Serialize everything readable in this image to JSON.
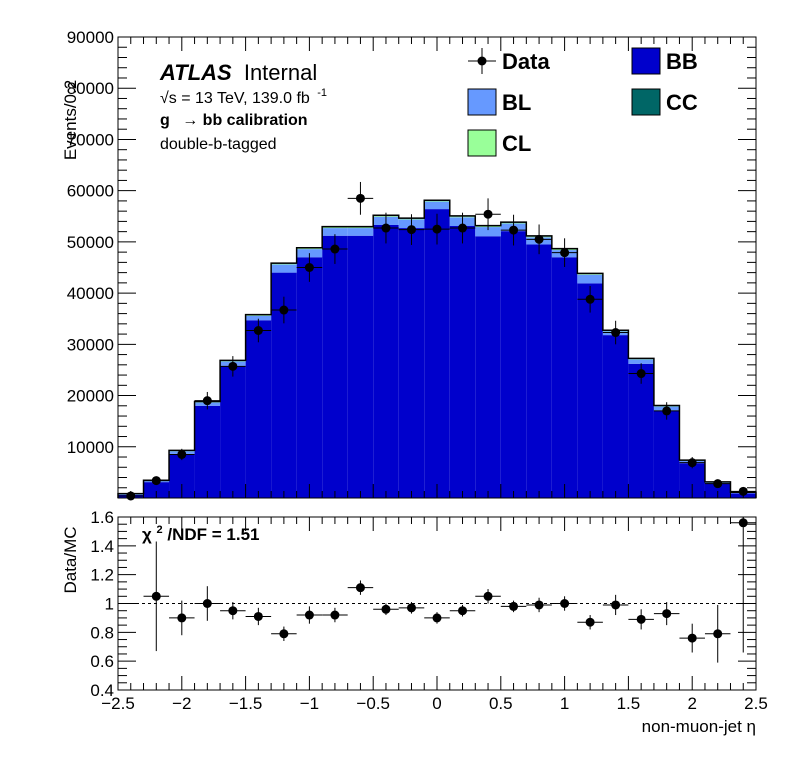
{
  "chart_data": [
    {
      "type": "bar",
      "stacked": true,
      "ylabel": "Events/0.2",
      "ylim": [
        0,
        90000
      ],
      "xlim": [
        -2.5,
        2.5
      ],
      "yticks": [
        10000,
        20000,
        30000,
        40000,
        50000,
        60000,
        70000,
        80000,
        90000
      ],
      "ytick_labels": [
        "10000",
        "20000",
        "30000",
        "40000",
        "50000",
        "60000",
        "70000",
        "80000",
        "90000"
      ],
      "annotations": {
        "atlas": "ATLAS",
        "internal": "Internal",
        "sqrt_s": "√s = 13 TeV, 139.0 fb",
        "lumi_exp": "-1",
        "process_g": "g",
        "process_rest": "→ bb calibration",
        "selection": "double-b-tagged"
      },
      "legend": {
        "placement": "top-right",
        "entries": [
          {
            "label": "Data",
            "color": "#000000",
            "marker": "point"
          },
          {
            "label": "BB",
            "color": "#0000cc"
          },
          {
            "label": "BL",
            "color": "#6699ff"
          },
          {
            "label": "CC",
            "color": "#006666"
          },
          {
            "label": "CL",
            "color": "#99ff99"
          }
        ]
      },
      "bin_edges": [
        -2.5,
        -2.3,
        -2.1,
        -1.9,
        -1.7,
        -1.5,
        -1.3,
        -1.1,
        -0.9,
        -0.7,
        -0.5,
        -0.3,
        -0.1,
        0.1,
        0.3,
        0.5,
        0.7,
        0.9,
        1.1,
        1.3,
        1.5,
        1.7,
        1.9,
        2.1,
        2.3,
        2.5
      ],
      "series": [
        {
          "name": "BB",
          "color": "#0000cc",
          "values": [
            600,
            3100,
            8600,
            18000,
            25800,
            34700,
            44000,
            47000,
            51200,
            51200,
            53300,
            52700,
            56400,
            53100,
            51100,
            52100,
            49500,
            47000,
            41900,
            31800,
            26200,
            17100,
            6800,
            2900,
            900
          ]
        },
        {
          "name": "BL",
          "color": "#6699ff",
          "values": [
            200,
            300,
            600,
            700,
            900,
            900,
            1600,
            1600,
            1500,
            1500,
            1600,
            1700,
            1500,
            1700,
            1800,
            1500,
            1400,
            1400,
            1700,
            800,
            900,
            800,
            500,
            200,
            200
          ]
        },
        {
          "name": "CL",
          "color": "#99ff99",
          "values": [
            20,
            30,
            40,
            60,
            70,
            80,
            110,
            100,
            110,
            110,
            120,
            100,
            90,
            120,
            110,
            110,
            120,
            120,
            110,
            60,
            70,
            70,
            40,
            20,
            10
          ]
        },
        {
          "name": "CC",
          "color": "#006666",
          "values": [
            30,
            40,
            60,
            90,
            110,
            120,
            150,
            150,
            160,
            160,
            170,
            150,
            150,
            170,
            160,
            150,
            160,
            160,
            150,
            90,
            100,
            100,
            60,
            30,
            20
          ]
        }
      ],
      "data": {
        "name": "Data",
        "x": [
          -2.4,
          -2.2,
          -2.0,
          -1.8,
          -1.6,
          -1.4,
          -1.2,
          -1.0,
          -0.8,
          -0.6,
          -0.4,
          -0.2,
          0.0,
          0.2,
          0.4,
          0.6,
          0.8,
          1.0,
          1.2,
          1.4,
          1.6,
          1.8,
          2.0,
          2.2,
          2.4
        ],
        "y": [
          400,
          3400,
          8500,
          19000,
          25700,
          32700,
          36700,
          45000,
          48600,
          58500,
          52700,
          52400,
          52500,
          52700,
          55400,
          52300,
          50500,
          47900,
          38800,
          32300,
          24300,
          17000,
          6900,
          2800,
          1300
        ],
        "yerr": [
          300,
          700,
          1100,
          1700,
          2000,
          2300,
          2600,
          2800,
          2900,
          3200,
          3000,
          3000,
          3000,
          3000,
          3100,
          3000,
          2900,
          2800,
          2600,
          2300,
          2000,
          1700,
          1100,
          700,
          450
        ]
      }
    },
    {
      "type": "scatter",
      "xlabel": "non-muon-jet η",
      "ylabel": "Data/MC",
      "ylim": [
        0.4,
        1.6
      ],
      "xlim": [
        -2.5,
        2.5
      ],
      "yticks": [
        0.4,
        0.6,
        0.8,
        1.0,
        1.2,
        1.4,
        1.6
      ],
      "ytick_labels": [
        "0.4",
        "0.6",
        "0.8",
        "1",
        "1.2",
        "1.4",
        "1.6"
      ],
      "xticks": [
        -2.5,
        -2.0,
        -1.5,
        -1.0,
        -0.5,
        0.0,
        0.5,
        1.0,
        1.5,
        2.0,
        2.5
      ],
      "xtick_labels": [
        "−2.5",
        "−2",
        "−1.5",
        "−1",
        "−0.5",
        "0",
        "0.5",
        "1",
        "1.5",
        "2",
        "2.5"
      ],
      "reference_line": 1.0,
      "chi2_label": "χ",
      "chi2_exp": "2",
      "chi2_rest": "/NDF = 1.51",
      "x": [
        -2.2,
        -2.0,
        -1.8,
        -1.6,
        -1.4,
        -1.2,
        -1.0,
        -0.8,
        -0.6,
        -0.4,
        -0.2,
        0.0,
        0.2,
        0.4,
        0.6,
        0.8,
        1.0,
        1.2,
        1.4,
        1.6,
        1.8,
        2.0,
        2.2,
        2.4
      ],
      "y": [
        1.05,
        0.9,
        1.0,
        0.95,
        0.91,
        0.79,
        0.92,
        0.92,
        1.11,
        0.96,
        0.97,
        0.9,
        0.95,
        1.05,
        0.98,
        0.99,
        1.0,
        0.87,
        0.99,
        0.89,
        0.93,
        0.76,
        0.79,
        1.56
      ],
      "yerr": [
        0.38,
        0.12,
        0.12,
        0.06,
        0.06,
        0.05,
        0.06,
        0.05,
        0.05,
        0.04,
        0.04,
        0.04,
        0.04,
        0.05,
        0.04,
        0.05,
        0.05,
        0.05,
        0.07,
        0.07,
        0.08,
        0.1,
        0.2,
        0.9
      ]
    }
  ]
}
